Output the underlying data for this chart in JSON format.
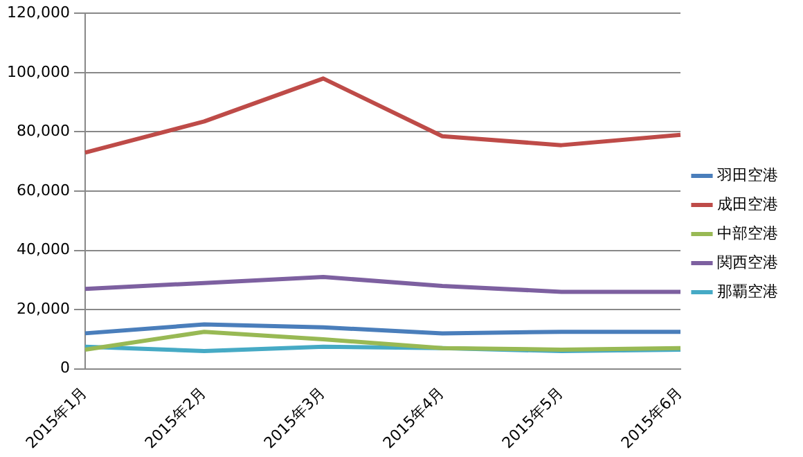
{
  "chart_data": {
    "type": "line",
    "categories": [
      "2015年1月",
      "2015年2月",
      "2015年3月",
      "2015年4月",
      "2015年5月",
      "2015年6月"
    ],
    "series": [
      {
        "name": "羽田空港",
        "color": "#4a7ebb",
        "values": [
          12000,
          15000,
          14000,
          12000,
          12500,
          12500
        ]
      },
      {
        "name": "成田空港",
        "color": "#be4b48",
        "values": [
          73000,
          83500,
          98000,
          78500,
          75500,
          79000
        ]
      },
      {
        "name": "中部空港",
        "color": "#98b954",
        "values": [
          6500,
          12500,
          10000,
          7000,
          6500,
          7000
        ]
      },
      {
        "name": "関西空港",
        "color": "#7d60a0",
        "values": [
          27000,
          29000,
          31000,
          28000,
          26000,
          26000
        ]
      },
      {
        "name": "那覇空港",
        "color": "#46aac5",
        "values": [
          7500,
          6000,
          7500,
          7000,
          6000,
          6500
        ]
      }
    ],
    "ylim": [
      0,
      120000
    ],
    "yticks": [
      {
        "value": 0,
        "label": "0"
      },
      {
        "value": 20000,
        "label": "20,000"
      },
      {
        "value": 40000,
        "label": "40,000"
      },
      {
        "value": 60000,
        "label": "60,000"
      },
      {
        "value": 80000,
        "label": "80,000"
      },
      {
        "value": 100000,
        "label": "100,000"
      },
      {
        "value": 120000,
        "label": "120,000"
      }
    ],
    "grid": "y",
    "legend": "right",
    "marker": "none"
  }
}
